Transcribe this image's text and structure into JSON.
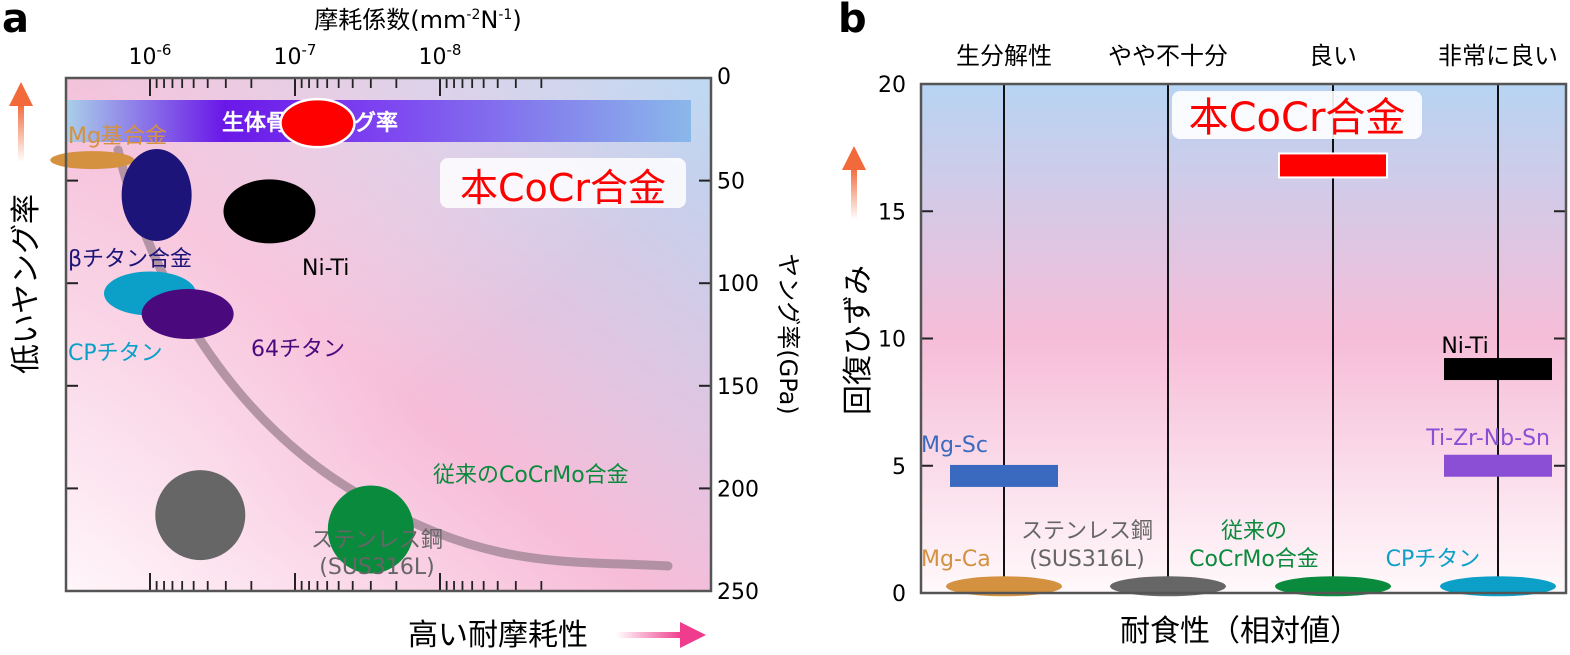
{
  "panel_a": {
    "letter": "a",
    "top_axis_label": "摩耗係数(mm-2N-1)",
    "top_axis_label_main": "摩耗係数(mm",
    "top_axis_label_sup1": "-2",
    "top_axis_label_mid": "N",
    "top_axis_label_sup2": "-1",
    "top_axis_label_end": ")",
    "bottom_label": "高い耐摩耗性",
    "left_label": "低いヤング率",
    "right_axis_label": "ヤング率(GPa)",
    "band_label": "生体骨のヤング率",
    "highlight_label": "本CoCr合金"
  },
  "panel_b": {
    "letter": "b",
    "y_axis_label": "回復ひずみ",
    "x_axis_label": "耐食性（相対値）",
    "highlight_label": "本CoCr合金"
  },
  "colors": {
    "highlight": "#ff0000",
    "arrow_up": "#f26a3c",
    "arrow_right": "#ef3c8c",
    "curve": "#a78a9a"
  },
  "chart_data": [
    {
      "type": "scatter",
      "title": "",
      "x_axis": {
        "label": "摩耗係数(mm-2N-1)",
        "scale": "log",
        "reversed": true,
        "range": [
          3e-06,
          8e-09
        ],
        "ticks": [
          1e-06,
          1e-07,
          1e-08
        ],
        "tick_labels": [
          "10-6",
          "10-7",
          "10-8"
        ],
        "position": "top"
      },
      "y_axis": {
        "label": "ヤング率(GPa)",
        "range": [
          0,
          250
        ],
        "reversed": true,
        "ticks": [
          0,
          50,
          100,
          150,
          200,
          250
        ],
        "tick_labels": [
          "0",
          "50",
          "100",
          "150",
          "200",
          "250"
        ],
        "position": "right"
      },
      "band": {
        "label": "生体骨のヤング率",
        "y_range": [
          10,
          30
        ]
      },
      "trend_curve": "decreasing wear with increasing modulus",
      "points": [
        {
          "name": "本CoCr合金",
          "x": 7e-08,
          "y": 22,
          "color": "#ff0000"
        },
        {
          "name": "Mg基合金",
          "x": 2.5e-06,
          "y": 40,
          "color": "#d4913f"
        },
        {
          "name": "βチタン合金",
          "x": 9e-07,
          "y": 57,
          "color": "#1c1478"
        },
        {
          "name": "Ni-Ti",
          "x": 1.5e-07,
          "y": 65,
          "color": "#000000"
        },
        {
          "name": "CPチタン",
          "x": 1e-06,
          "y": 105,
          "color": "#0ca0c8"
        },
        {
          "name": "64チタン",
          "x": 5.5e-07,
          "y": 115,
          "color": "#4a0a7e"
        },
        {
          "name": "ステンレス鋼(SUS316L)",
          "x": 4.5e-07,
          "y": 213,
          "color": "#666666"
        },
        {
          "name": "従来のCoCrMo合金",
          "x": 3e-08,
          "y": 220,
          "color": "#0a8a3c"
        }
      ]
    },
    {
      "type": "bar",
      "title": "",
      "xlabel": "耐食性（相対値）",
      "ylabel": "回復ひずみ",
      "categories": [
        "生分解性",
        "やや不十分",
        "良い",
        "非常に良い"
      ],
      "ylim": [
        0,
        20
      ],
      "yticks": [
        0,
        5,
        10,
        15,
        20
      ],
      "materials": [
        {
          "name": "Mg-Ca",
          "category": "生分解性",
          "value": 0.5,
          "color": "#d4913f"
        },
        {
          "name": "Mg-Sc",
          "category": "生分解性",
          "value": 4.6,
          "color": "#3a6abf"
        },
        {
          "name": "ステンレス鋼(SUS316L)",
          "category": "やや不十分",
          "value": 0.5,
          "color": "#666666"
        },
        {
          "name": "従来のCoCrMo合金",
          "category": "良い",
          "value": 0.5,
          "color": "#0a8a3c"
        },
        {
          "name": "本CoCr合金",
          "category": "良い",
          "value": 16.8,
          "color": "#ff0000"
        },
        {
          "name": "CPチタン",
          "category": "非常に良い",
          "value": 0.5,
          "color": "#0ca0c8"
        },
        {
          "name": "Ti-Zr-Nb-Sn",
          "category": "非常に良い",
          "value": 5.0,
          "color": "#8a4fd4"
        },
        {
          "name": "Ni-Ti",
          "category": "非常に良い",
          "value": 8.8,
          "color": "#000000"
        }
      ]
    }
  ]
}
